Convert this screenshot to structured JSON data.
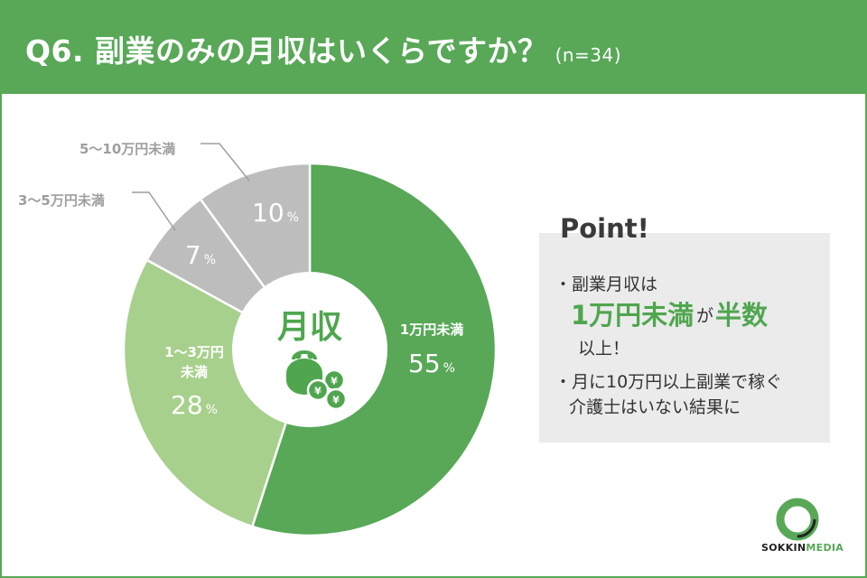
{
  "header": {
    "title": "Q6. 副業のみの月収はいくらですか？",
    "n_label": "(n=34)"
  },
  "colors": {
    "header_bg": "#58a857",
    "slice_1": "#58a857",
    "slice_2": "#a8d08d",
    "slice_3": "#bdbdbd",
    "slice_4": "#bdbdbd",
    "point_bg": "#ebebeb",
    "highlight": "#4fa64e"
  },
  "chart_data": {
    "type": "pie",
    "start_angle_deg": 0,
    "direction": "clockwise",
    "center_label": "月収",
    "center_icon": "coin-purse-yen-icon",
    "slices": [
      {
        "label_lines": [
          "1万円未満"
        ],
        "value": 55,
        "value_text": "55",
        "unit": "%",
        "label_outside": false
      },
      {
        "label_lines": [
          "1〜3万円",
          "未満"
        ],
        "value": 28,
        "value_text": "28",
        "unit": "%",
        "label_outside": false
      },
      {
        "label_lines": [
          "3〜5万円未満"
        ],
        "value": 7,
        "value_text": "7",
        "unit": "%",
        "label_outside": true
      },
      {
        "label_lines": [
          "5〜10万円未満"
        ],
        "value": 10,
        "value_text": "10",
        "unit": "%",
        "label_outside": true
      }
    ]
  },
  "point": {
    "title": "Point!",
    "bullet1_line1": "・副業月収は",
    "bullet1_highlight": "1万円未満",
    "bullet1_connector": "が",
    "bullet1_highlight2": "半数",
    "bullet1_line3": "以上！",
    "bullet2_line1": "・月に10万円以上副業で稼ぐ",
    "bullet2_line2": "介護士はいない結果に"
  },
  "logo": {
    "icon": "sokkin-ring-logo",
    "text_1": "SOKKIN",
    "text_2": "MEDIA"
  }
}
